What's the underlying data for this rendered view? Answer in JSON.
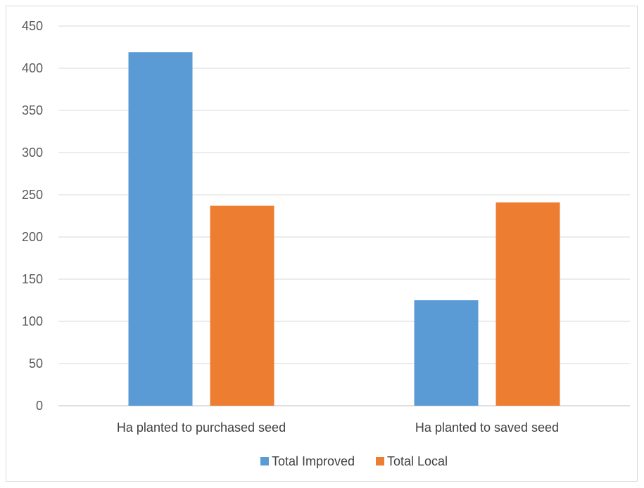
{
  "chart_data": {
    "type": "bar",
    "categories": [
      "Ha planted to purchased seed",
      "Ha planted to saved seed"
    ],
    "series": [
      {
        "name": "Total Improved",
        "values": [
          419,
          125
        ],
        "color": "#5b9bd5"
      },
      {
        "name": "Total Local",
        "values": [
          237,
          241
        ],
        "color": "#ed7d31"
      }
    ],
    "title": "",
    "xlabel": "",
    "ylabel": "",
    "ylim": [
      0,
      450
    ],
    "yticks": [
      0,
      50,
      100,
      150,
      200,
      250,
      300,
      350,
      400,
      450
    ],
    "grid": true,
    "legend": "bottom"
  }
}
